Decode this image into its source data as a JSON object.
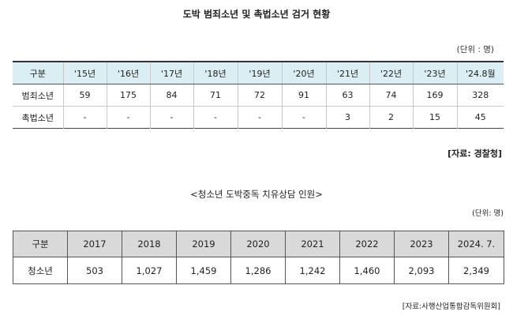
{
  "table1": {
    "title": "도박 범죄소년 및 촉법소년 검거 현황",
    "unit": "(단위 : 명)",
    "headers": [
      "구분",
      "'15년",
      "'16년",
      "'17년",
      "'18년",
      "'19년",
      "'20년",
      "'21년",
      "'22년",
      "'23년",
      "'24.8월"
    ],
    "rows": [
      [
        "범죄소년",
        "59",
        "175",
        "84",
        "71",
        "72",
        "91",
        "63",
        "74",
        "169",
        "328"
      ],
      [
        "촉법소년",
        "-",
        "-",
        "-",
        "-",
        "-",
        "-",
        "3",
        "2",
        "15",
        "45"
      ]
    ],
    "source": "[자료: 경찰청]"
  },
  "table2": {
    "title": "<청소년 도박중독 치유상담 인원>",
    "unit": "(단위: 명)",
    "headers": [
      "구분",
      "2017",
      "2018",
      "2019",
      "2020",
      "2021",
      "2022",
      "2023",
      "2024. 7."
    ],
    "rows": [
      [
        "청소년",
        "503",
        "1,027",
        "1,459",
        "1,286",
        "1,242",
        "1,460",
        "2,093",
        "2,349"
      ]
    ],
    "source": "[자료:사행산업통합감독위원회]"
  },
  "colors": {
    "table1_header_bg": "#dbeef3",
    "table2_header_bg": "#d9d9d9"
  }
}
